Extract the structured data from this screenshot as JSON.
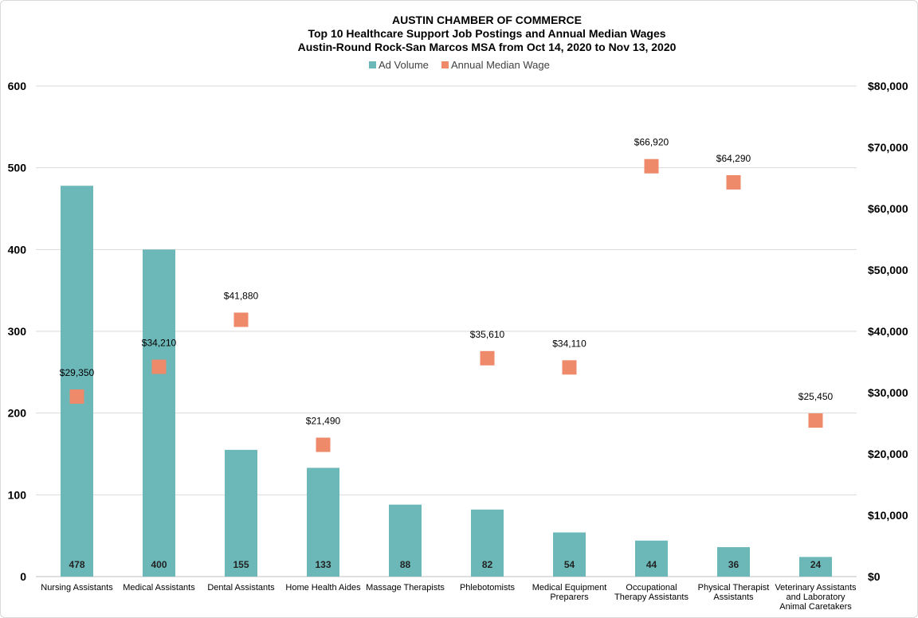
{
  "chart_data": {
    "type": "bar",
    "title": "AUSTIN CHAMBER OF COMMERCE",
    "subtitle": "Top 10 Healthcare Support Job Postings and Annual  Median Wages",
    "subtitle2": "Austin-Round Rock-San Marcos MSA from Oct 14, 2020 to Nov 13, 2020",
    "categories": [
      [
        "Nursing Assistants"
      ],
      [
        "Medical Assistants"
      ],
      [
        "Dental Assistants"
      ],
      [
        "Home Health Aides"
      ],
      [
        "Massage Therapists"
      ],
      [
        "Phlebotomists"
      ],
      [
        "Medical Equipment",
        "Preparers"
      ],
      [
        "Occupational",
        "Therapy Assistants"
      ],
      [
        "Physical Therapist",
        "Assistants"
      ],
      [
        "Veterinary Assistants",
        "and Laboratory",
        "Animal Caretakers"
      ]
    ],
    "series": [
      {
        "name": "Ad Volume",
        "type": "bar",
        "axis": "left",
        "color": "#6cb8b8",
        "values": [
          478,
          400,
          155,
          133,
          88,
          82,
          54,
          44,
          36,
          24
        ],
        "labels": [
          "478",
          "400",
          "155",
          "133",
          "88",
          "82",
          "54",
          "44",
          "36",
          "24"
        ]
      },
      {
        "name": "Annual Median Wage",
        "type": "scatter",
        "axis": "right",
        "color": "#ee8a6a",
        "values": [
          29350,
          34210,
          41880,
          21490,
          null,
          35610,
          34110,
          66920,
          64290,
          25450
        ],
        "labels": [
          "$29,350",
          "$34,210",
          "$41,880",
          "$21,490",
          "",
          "$35,610",
          "$34,110",
          "$66,920",
          "$64,290",
          "$25,450"
        ]
      }
    ],
    "ylim_left": [
      0,
      600
    ],
    "yticks_left": [
      "0",
      "100",
      "200",
      "300",
      "400",
      "500",
      "600"
    ],
    "ylim_right": [
      0,
      80000
    ],
    "yticks_right": [
      "$0",
      "$10,000",
      "$20,000",
      "$30,000",
      "$40,000",
      "$50,000",
      "$60,000",
      "$70,000",
      "$80,000"
    ],
    "grid": true,
    "legend_position": "top-center"
  }
}
